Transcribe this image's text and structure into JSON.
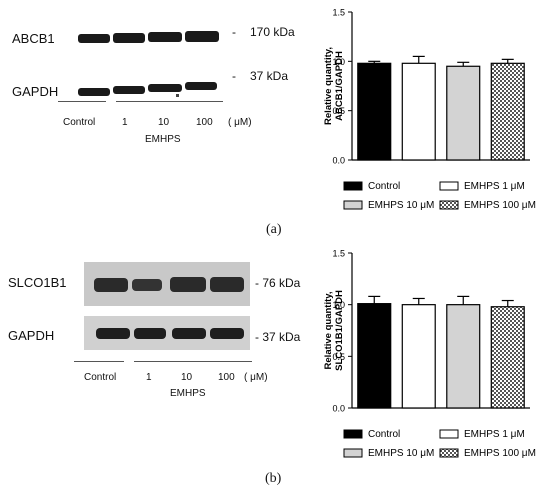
{
  "panels": [
    {
      "id": "a",
      "letter": "(a)",
      "blot": {
        "rows": [
          {
            "name": "ABCB1",
            "kda": "170 kDa"
          },
          {
            "name": "GAPDH",
            "kda": "37 kDa"
          }
        ],
        "lanes": [
          "Control",
          "1",
          "10",
          "100"
        ],
        "unit": "( μM)",
        "group_label": "EMHPS"
      }
    },
    {
      "id": "b",
      "letter": "(b)",
      "blot": {
        "rows": [
          {
            "name": "SLCO1B1",
            "kda": "- 76 kDa"
          },
          {
            "name": "GAPDH",
            "kda": "- 37 kDa"
          }
        ],
        "lanes": [
          "Control",
          "1",
          "10",
          "100"
        ],
        "unit": "( μM)",
        "group_label": "EMHPS"
      }
    }
  ],
  "chart_data": [
    {
      "type": "bar",
      "ylabel": [
        "Relative quantity,",
        "ABCB1/GAPDH"
      ],
      "ylim": [
        0,
        1.5
      ],
      "yticks": [
        "0.0",
        "0.5",
        "1.0",
        "1.5"
      ],
      "categories": [
        "Control",
        "EMHPS 1 μM",
        "EMHPS 10  μM",
        "EMHPS 100 μM"
      ],
      "values": [
        0.98,
        0.98,
        0.95,
        0.98
      ],
      "errors": [
        0.02,
        0.07,
        0.04,
        0.04
      ],
      "legend": [
        {
          "label": "Control",
          "fill": "black"
        },
        {
          "label": "EMHPS 1 μM",
          "fill": "white"
        },
        {
          "label": "EMHPS 10  μM",
          "fill": "lightgray"
        },
        {
          "label": "EMHPS 100 μM",
          "fill": "checker"
        }
      ],
      "grid": false
    },
    {
      "type": "bar",
      "ylabel": [
        "Relative quantity,",
        "SLCO1B1/GAPDH"
      ],
      "ylim": [
        0,
        1.5
      ],
      "yticks": [
        "0.0",
        "0.5",
        "1.0",
        "1.5"
      ],
      "categories": [
        "Control",
        "EMHPS 1 μM",
        "EMHPS 10  μM",
        "EMHPS 100 μM"
      ],
      "values": [
        1.01,
        1.0,
        1.0,
        0.98
      ],
      "errors": [
        0.07,
        0.06,
        0.08,
        0.06
      ],
      "legend": [
        {
          "label": "Control",
          "fill": "black"
        },
        {
          "label": "EMHPS 1 μM",
          "fill": "white"
        },
        {
          "label": "EMHPS 10  μM",
          "fill": "lightgray"
        },
        {
          "label": "EMHPS 100 μM",
          "fill": "checker"
        }
      ],
      "grid": false
    }
  ],
  "colors": {
    "bar_black": "#000000",
    "bar_gray": "#d3d3d3",
    "axis": "#000000"
  }
}
